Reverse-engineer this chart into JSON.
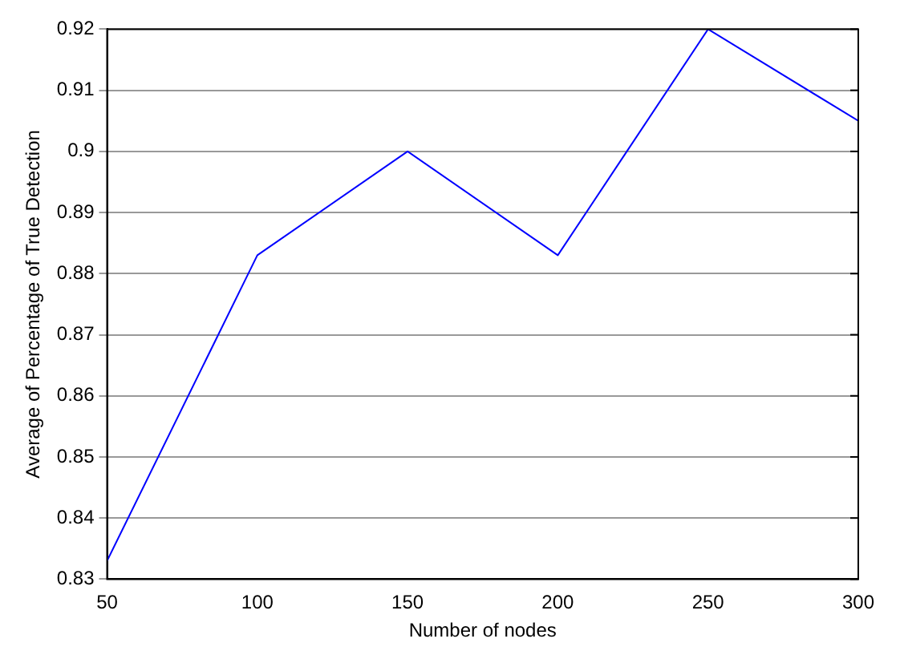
{
  "chart_data": {
    "type": "line",
    "xlabel": "Number of nodes",
    "ylabel": "Average of Percentage of True Detection",
    "x": [
      50,
      100,
      150,
      200,
      250,
      300
    ],
    "series": [
      {
        "color": "#0000ff",
        "values": [
          0.833,
          0.883,
          0.9,
          0.883,
          0.92,
          0.905
        ]
      }
    ],
    "xlim": [
      50,
      300
    ],
    "xticks": [
      50,
      100,
      150,
      200,
      250,
      300
    ],
    "ylim": [
      0.83,
      0.92
    ],
    "yticks": [
      0.83,
      0.84,
      0.85,
      0.86,
      0.87,
      0.88,
      0.89,
      0.9,
      0.91,
      0.92
    ],
    "grid": "y",
    "legend": false,
    "marker": "none",
    "line_style": "solid"
  }
}
